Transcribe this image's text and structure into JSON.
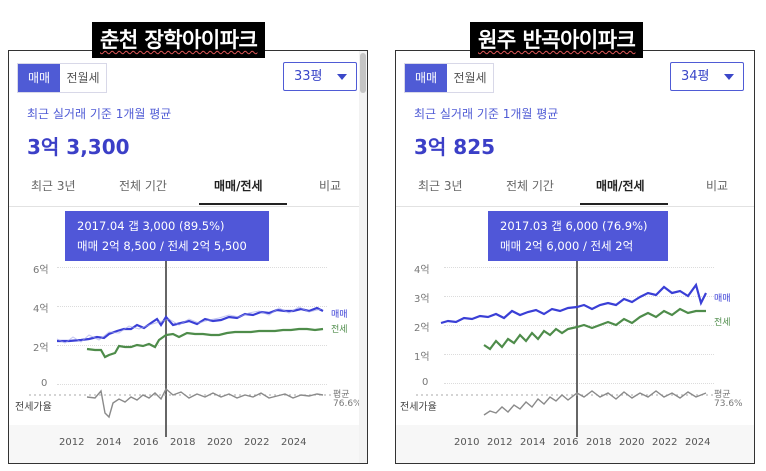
{
  "left": {
    "banner": "춘천 장학아이파크",
    "tab_sale": "매매",
    "tab_rent": "전월세",
    "area": "33평",
    "subtitle": "최근 실거래 기준 1개월 평균",
    "price": "3억 3,300",
    "tabs": [
      "최근 3년",
      "전체 기간",
      "매매/전세",
      "비교"
    ],
    "tooltip_line1": "2017.04  갭 3,000 (89.5%)",
    "tooltip_line2": "매매 2억 8,500 / 전세 2억 5,500",
    "y_ticks": [
      "6억",
      "4억",
      "2억",
      "0"
    ],
    "x_ticks": [
      "2012",
      "2014",
      "2016",
      "2018",
      "2020",
      "2022",
      "2024"
    ],
    "legend_sale": "매매",
    "legend_jeonse": "전세",
    "ratio_label": "전세가율",
    "avg_label": "평균",
    "avg_value": "76.6%",
    "colors": {
      "sale": "#3a3fd6",
      "jeonse": "#4e8c4a",
      "ratio": "#8a8a8a"
    }
  },
  "right": {
    "banner": "원주 반곡아이파크",
    "tab_sale": "매매",
    "tab_rent": "전월세",
    "area": "34평",
    "subtitle": "최근 실거래 기준 1개월 평균",
    "price": "3억 825",
    "tabs": [
      "최근 3년",
      "전체 기간",
      "매매/전세",
      "비교"
    ],
    "tooltip_line1": "2017.03  갭 6,000 (76.9%)",
    "tooltip_line2": "매매 2억 6,000 / 전세 2억",
    "y_ticks": [
      "4억",
      "3억",
      "2억",
      "1억",
      "0"
    ],
    "x_ticks": [
      "2010",
      "2012",
      "2014",
      "2016",
      "2018",
      "2020",
      "2022",
      "2024"
    ],
    "legend_sale": "매매",
    "legend_jeonse": "전세",
    "ratio_label": "전세가율",
    "avg_label": "평균",
    "avg_value": "73.6%",
    "colors": {
      "sale": "#3a3fd6",
      "jeonse": "#4e8c4a",
      "ratio": "#8a8a8a"
    }
  }
}
